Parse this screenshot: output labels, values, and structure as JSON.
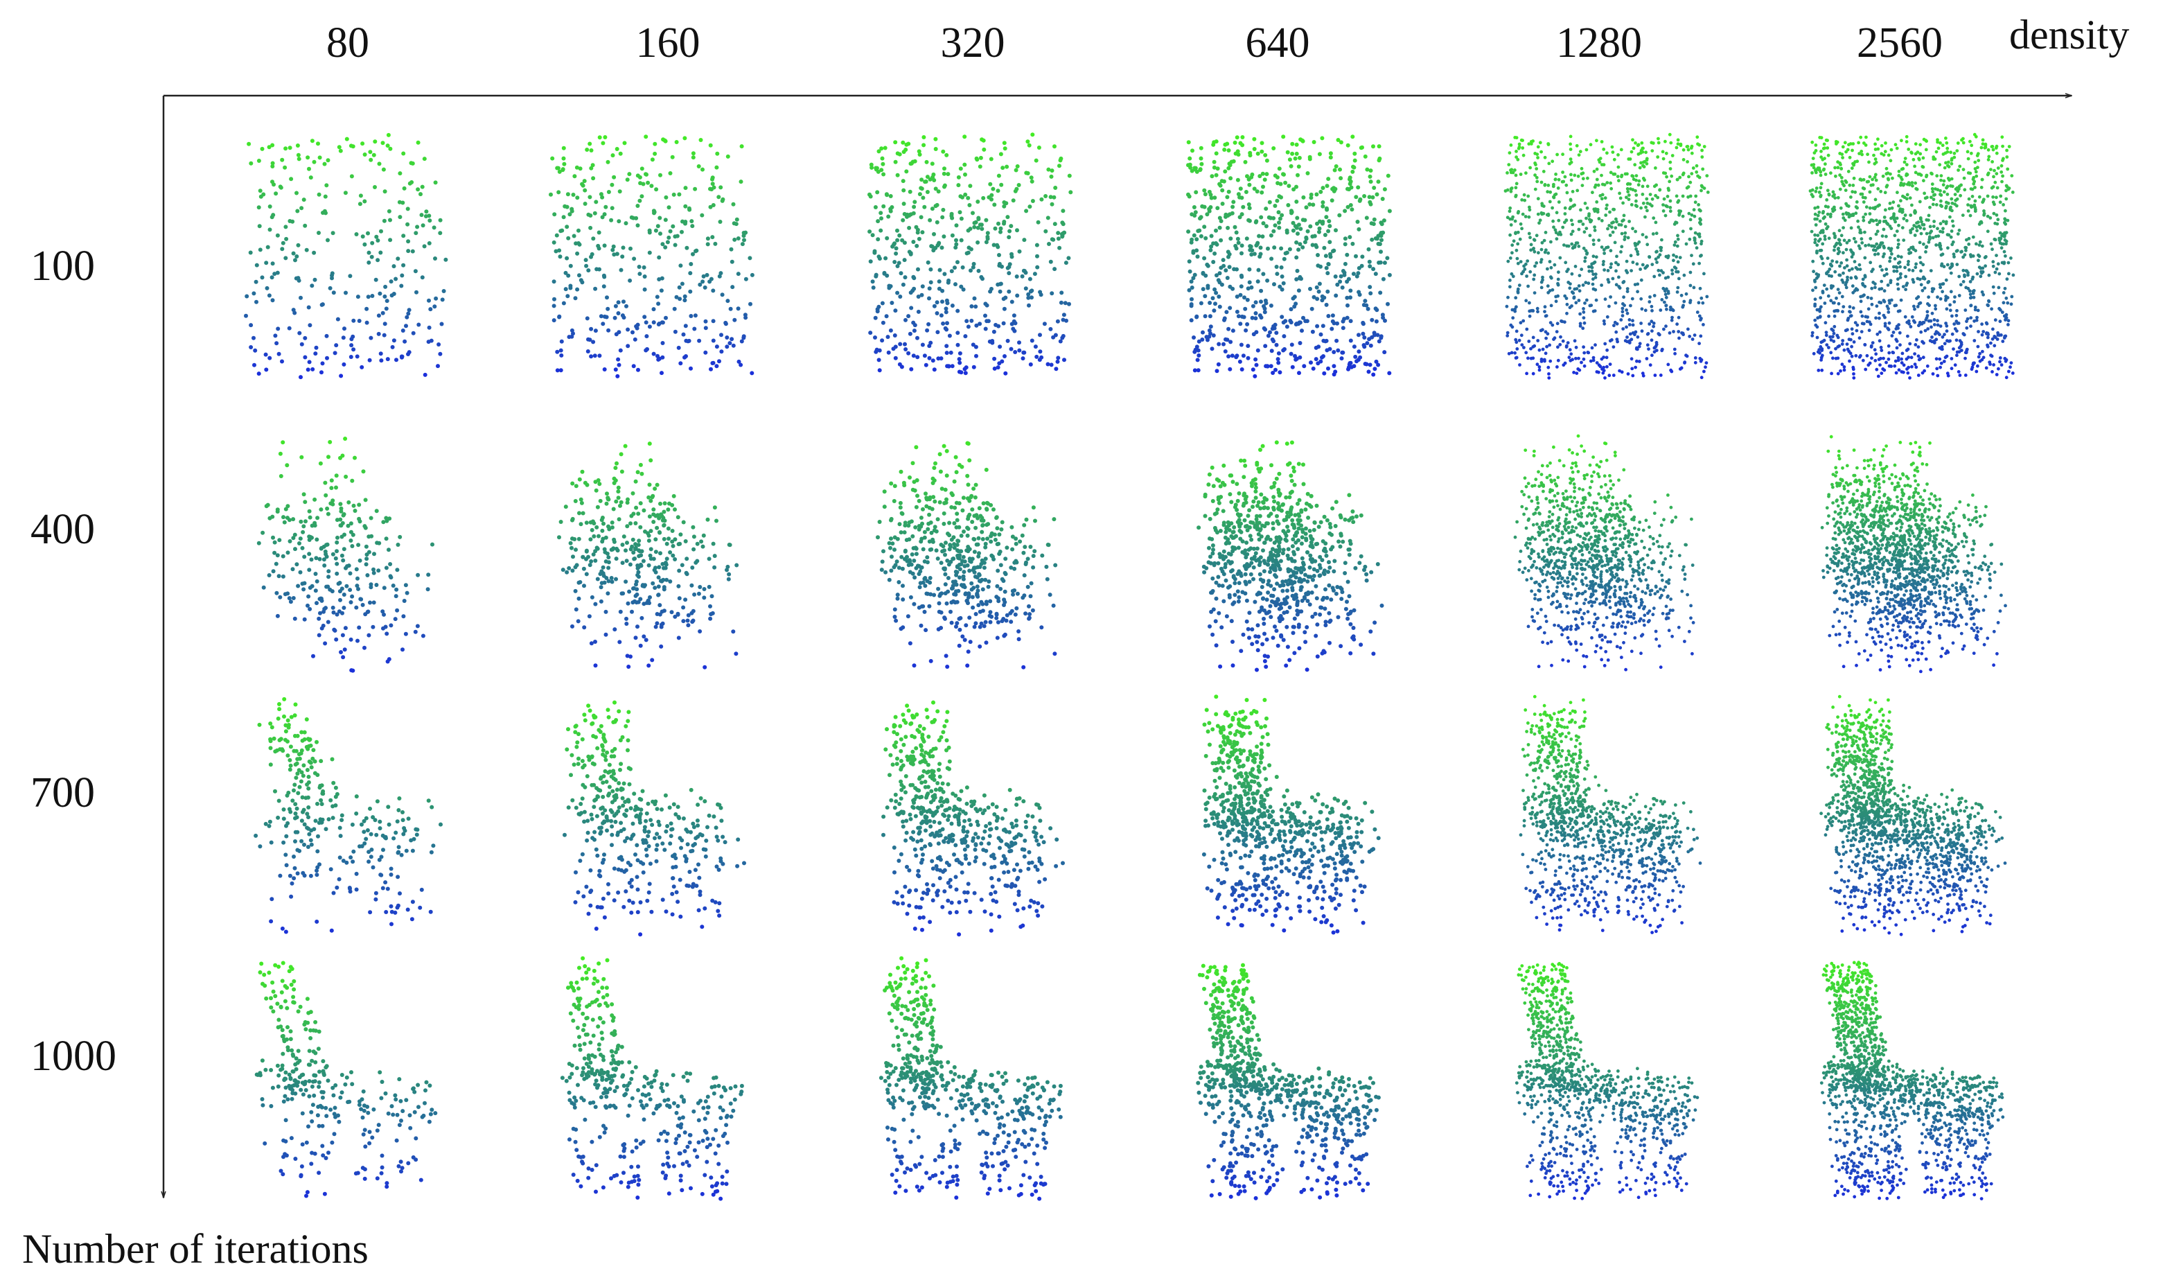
{
  "figure": {
    "x_axis_title": "density",
    "y_axis_title": "Number of iterations",
    "density_values": [
      "80",
      "160",
      "320",
      "640",
      "1280",
      "2560"
    ],
    "iteration_values": [
      "100",
      "400",
      "700",
      "1000"
    ],
    "point_colors": {
      "top": "#44ee22",
      "middle": "#2a8a7a",
      "bottom": "#1a2ae0"
    },
    "panel_shape_progression": [
      "uniform random rectangle",
      "emerging chair silhouette",
      "chair with backrest and seat",
      "refined chair with legs"
    ]
  }
}
